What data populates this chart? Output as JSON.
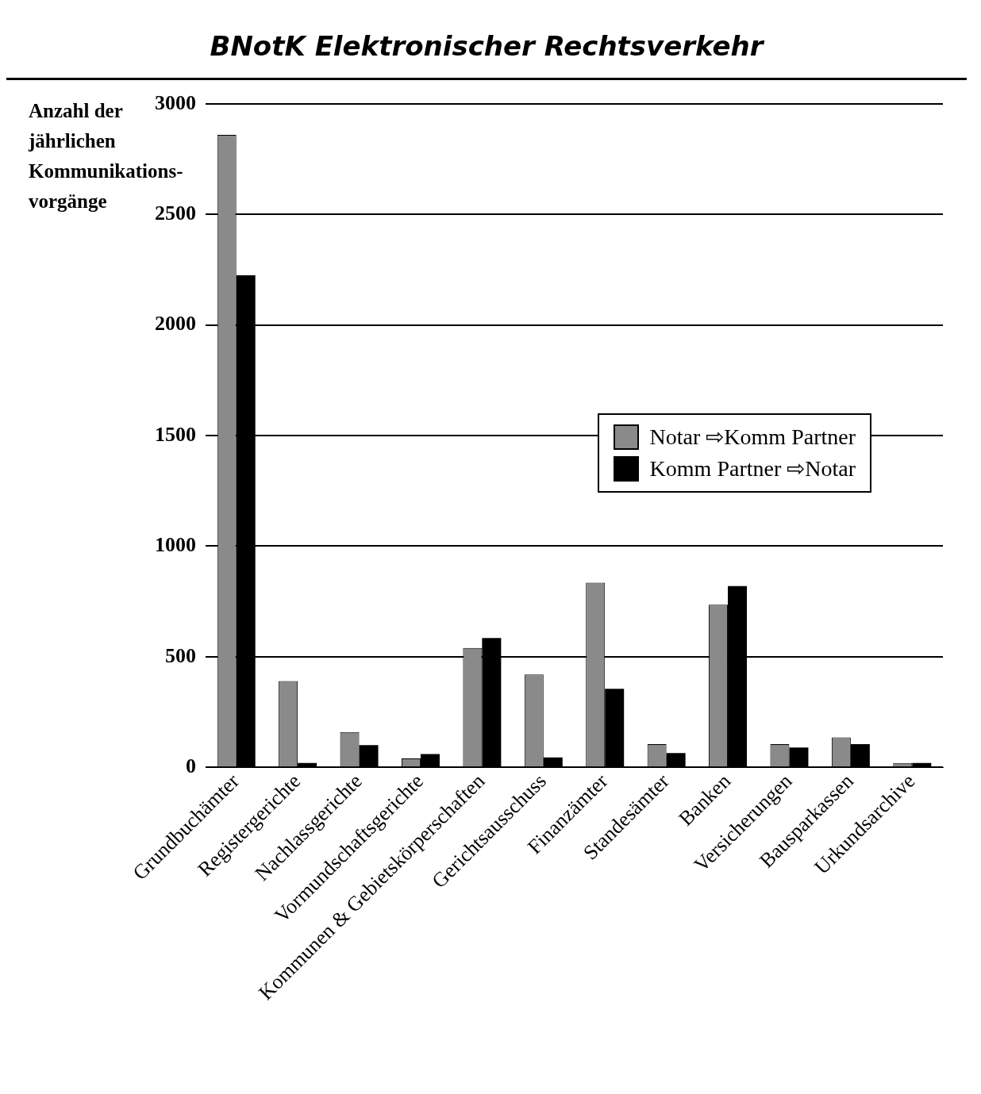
{
  "chart_data": {
    "type": "bar",
    "title": "BNotK Elektronischer Rechtsverkehr",
    "ylabel": "Anzahl der jährlichen Kommunikations-vorgänge",
    "categories": [
      "Grundbuchämter",
      "Registergerichte",
      "Nachlassgerichte",
      "Vormundschaftsgerichte",
      "Kommunen & Gebietskörperschaften",
      "Gerichtsausschuss",
      "Finanzämter",
      "Standesämter",
      "Banken",
      "Versicherungen",
      "Bausparkassen",
      "Urkundsarchive"
    ],
    "series": [
      {
        "name": "Notar ⇨Komm Partner",
        "color": "#8a8a8a",
        "values": [
          2860,
          390,
          160,
          40,
          540,
          420,
          835,
          105,
          735,
          105,
          135,
          20
        ]
      },
      {
        "name": "Komm Partner ⇨Notar",
        "color": "#000000",
        "values": [
          2225,
          20,
          100,
          60,
          585,
          45,
          355,
          65,
          820,
          90,
          105,
          20
        ]
      }
    ],
    "ylim": [
      0,
      3000
    ],
    "yticks": [
      0,
      500,
      1000,
      1500,
      2000,
      2500,
      3000
    ],
    "grid": "y",
    "legend": "right"
  }
}
